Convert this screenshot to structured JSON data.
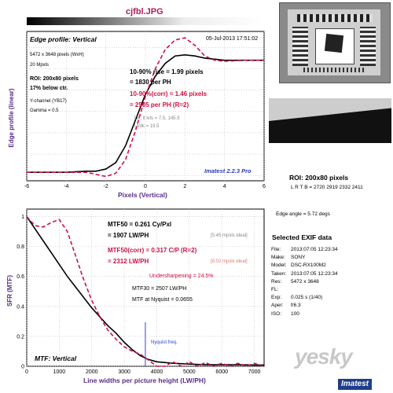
{
  "header": {
    "filename": "cjfbl.JPG"
  },
  "edge_panel": {
    "title": "Edge profile: Vertical",
    "datetime": "05-Jul-2013 17:51:02",
    "info_lines": [
      "5472 x 3648 pixels (WxH)",
      "20 Mpxls"
    ],
    "roi_line": "ROI: 200x80 pixels",
    "below_ctr": "17% below ctr.",
    "channel_lines": [
      "Y-channel (YB17)",
      "Gamma = 0.5"
    ],
    "rise_line1": "10-90% rise = 1.99 pixels",
    "rise_line2": "= 1830 per PH",
    "corr_line1": "10-90%(corr) = 1.46 pixels",
    "corr_line2": "= 2505 per PH  (R=2)",
    "dk_lt_line1": "Dk, lt lvls = 7.5, 145.9",
    "dk_lt_line2": "Lt/dk = 19.5",
    "imatest_label": "Imatest 2.2.3 Pro",
    "ylabel": "Edge profile (linear)",
    "xlabel": "Pixels (Vertical)"
  },
  "mtf_panel": {
    "mtf50_line1": "MTF50 = 0.261 Cy/Pxl",
    "mtf50_line2": "= 1907 LW/PH",
    "mtf50_ideal": "[5.45 mpxls ideal]",
    "corr_line1": "MTF50(corr) = 0.317 C/P  (R=2)",
    "corr_line2": "= 2312 LW/PH",
    "corr_ideal": "[8.02 mpxls ideal]",
    "undersharpening": "Undersharpening = 24.5%",
    "mtf30": "MTF30 = 2507 LW/PH",
    "mtf_nyquist": "MTF at Nyquist = 0.0655",
    "nyquist_label": "Nyquist freq.",
    "mtf_label": "MTF: Vertical",
    "ylabel": "SFR (MTF)",
    "xlabel": "Line widths per picture height (LW/PH)"
  },
  "roi_info": {
    "title": "ROI: 200x80 pixels",
    "lrtb": "L R T B = 2720 2919  2332 2411",
    "edge_angle": "Edge angle = 5.72 degs"
  },
  "exif": {
    "title": "Selected EXIF data",
    "rows": [
      {
        "k": "File:",
        "v": "2013:07:05 12:23:34"
      },
      {
        "k": "Make:",
        "v": "SONY"
      },
      {
        "k": "Model:",
        "v": "DSC-RX100M2"
      },
      {
        "k": "Taken:",
        "v": "2013:07:05 12:23:34"
      },
      {
        "k": "Res:",
        "v": "5472 x 3648"
      },
      {
        "k": "FL:",
        "v": ""
      },
      {
        "k": "Exp:",
        "v": "0.025 s  (1/40)"
      },
      {
        "k": "Aper:",
        "v": "f/6.3"
      },
      {
        "k": "ISO:",
        "v": "100"
      }
    ]
  },
  "watermarks": {
    "yesky": "yesky",
    "imatest": "Imatest"
  },
  "colors": {
    "measured": "#000000",
    "corrected": "#cc1144",
    "nyquist": "#3344cc",
    "axis_text": "#5a2d8a"
  },
  "chart_data": [
    {
      "type": "line",
      "title": "Edge profile: Vertical",
      "xlabel": "Pixels (Vertical)",
      "ylabel": "Edge profile (linear)",
      "xlim": [
        -6,
        6
      ],
      "ticks_x": [
        -6,
        -4,
        -2,
        0,
        2,
        4,
        6
      ],
      "ylim": [
        -0.05,
        1.35
      ],
      "grid": true,
      "series": [
        {
          "name": "measured",
          "x": [
            -6,
            -4,
            -3,
            -2.5,
            -2,
            -1.5,
            -1,
            -0.5,
            0,
            0.5,
            1,
            1.5,
            2,
            2.5,
            3,
            3.5,
            4,
            5,
            6
          ],
          "y": [
            0.03,
            0.03,
            0.04,
            0.04,
            0.06,
            0.12,
            0.28,
            0.52,
            0.76,
            0.93,
            1.05,
            1.12,
            1.13,
            1.12,
            1.1,
            1.09,
            1.08,
            1.08,
            1.08
          ]
        },
        {
          "name": "corrected",
          "x": [
            -6,
            -4,
            -3,
            -2.5,
            -2,
            -1.5,
            -1,
            -0.5,
            0,
            0.5,
            1,
            1.5,
            2,
            2.5,
            3,
            3.5,
            4,
            5,
            6
          ],
          "y": [
            0.03,
            0.03,
            0.03,
            0.01,
            -0.01,
            0.02,
            0.15,
            0.42,
            0.74,
            1.0,
            1.18,
            1.27,
            1.29,
            1.22,
            1.12,
            1.08,
            1.07,
            1.08,
            1.08
          ]
        }
      ]
    },
    {
      "type": "line",
      "title": "MTF: Vertical",
      "xlabel": "Line widths per picture height (LW/PH)",
      "ylabel": "SFR (MTF)",
      "xlim": [
        0,
        7300
      ],
      "ticks_x": [
        0,
        1000,
        2000,
        3000,
        4000,
        5000,
        6000,
        7000
      ],
      "ylim": [
        0,
        1.05
      ],
      "ticks_y": [
        0,
        0.2,
        0.4,
        0.6,
        0.8,
        1
      ],
      "grid": true,
      "nyquist_x": 3648,
      "series": [
        {
          "name": "measured",
          "x": [
            0,
            250,
            500,
            750,
            1000,
            1250,
            1500,
            1750,
            2000,
            2250,
            2500,
            2750,
            3000,
            3250,
            3500,
            3750,
            4000,
            4500,
            5000,
            5500,
            6000,
            6500,
            7000,
            7300
          ],
          "y": [
            1.0,
            0.92,
            0.84,
            0.76,
            0.68,
            0.6,
            0.53,
            0.46,
            0.39,
            0.33,
            0.27,
            0.22,
            0.16,
            0.11,
            0.07,
            0.045,
            0.03,
            0.02,
            0.015,
            0.01,
            0.01,
            0.01,
            0.008,
            0.008
          ]
        },
        {
          "name": "corrected",
          "x": [
            0,
            250,
            500,
            750,
            1000,
            1250,
            1500,
            1750,
            2000,
            2250,
            2500,
            2750,
            3000,
            3250,
            3500,
            3750,
            4000,
            4250,
            4500,
            4750,
            5000,
            5250,
            5500,
            5750,
            6000,
            6250,
            6500,
            6750,
            7000,
            7250
          ],
          "y": [
            1.0,
            0.94,
            0.93,
            0.96,
            0.98,
            0.9,
            0.74,
            0.58,
            0.44,
            0.33,
            0.24,
            0.18,
            0.13,
            0.1,
            0.08,
            0.04,
            0.0,
            0.0,
            0.03,
            0.0,
            0.03,
            0.0,
            0.025,
            0.0,
            0.02,
            0.0,
            0.02,
            0.0,
            0.02,
            0.0
          ]
        }
      ]
    }
  ]
}
